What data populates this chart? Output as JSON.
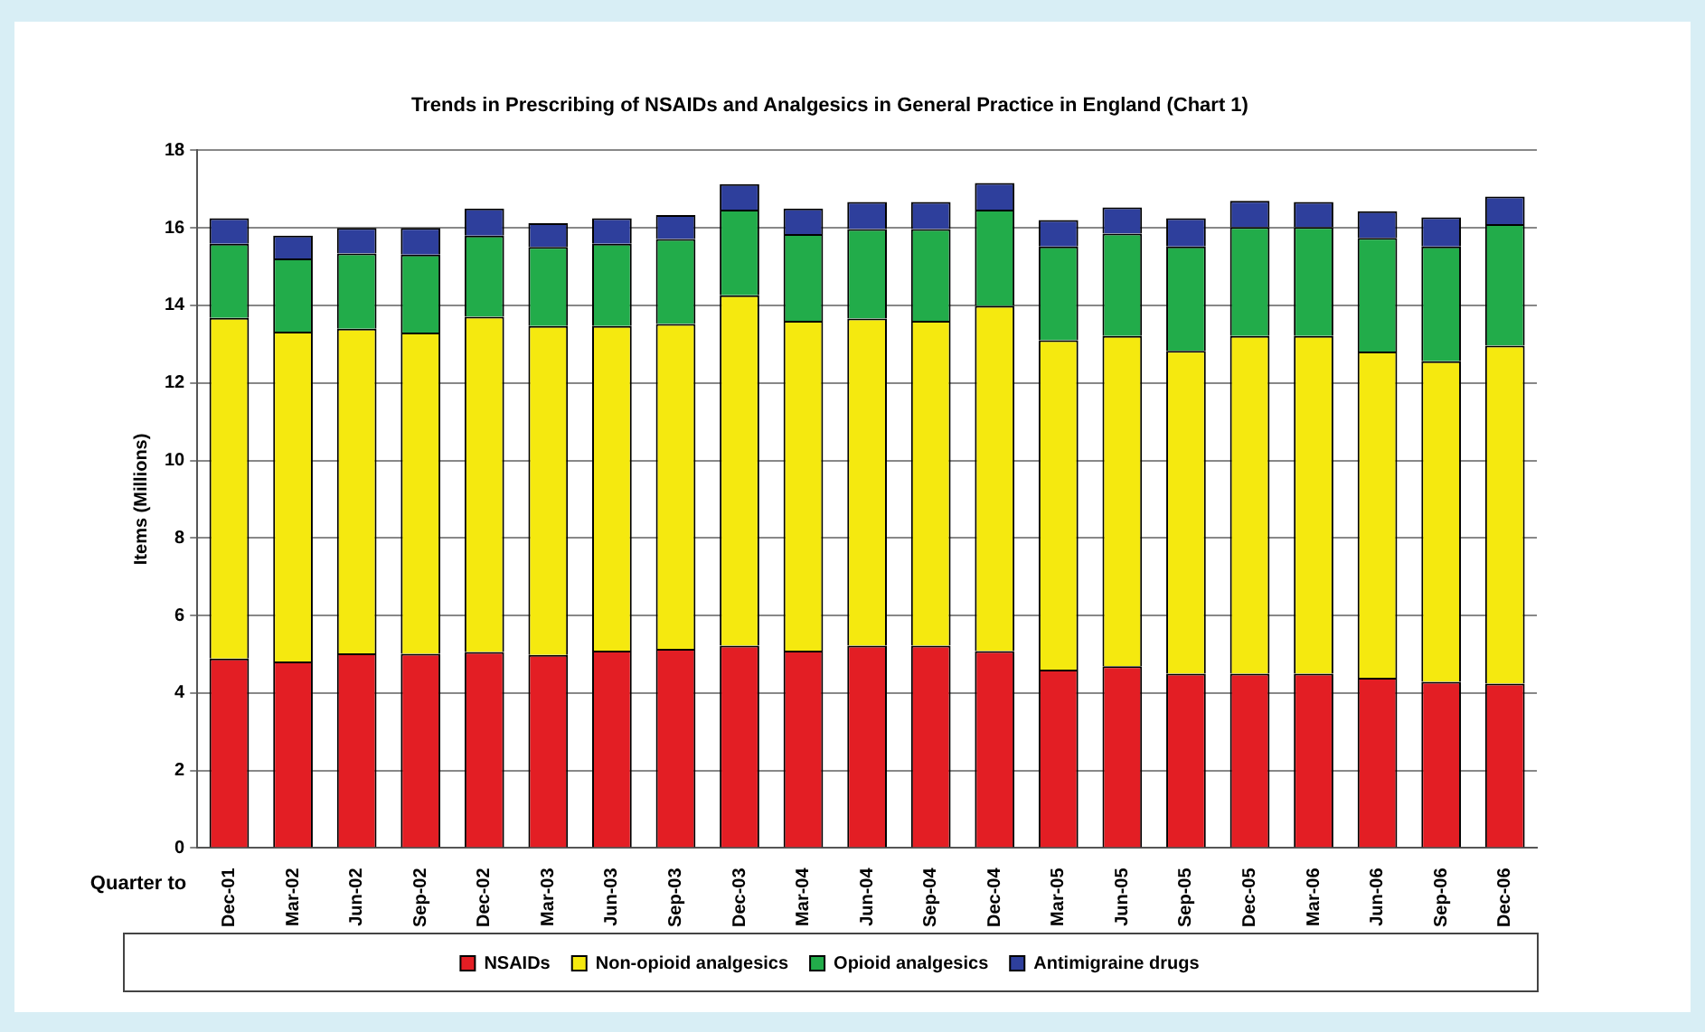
{
  "chart_data": {
    "type": "bar",
    "title": "Trends in Prescribing of NSAIDs and Analgesics in General Practice in England (Chart 1)",
    "xlabel": "Quarter to",
    "ylabel": "Items (Millions)",
    "categories": [
      "Dec-01",
      "Mar-02",
      "Jun-02",
      "Sep-02",
      "Dec-02",
      "Mar-03",
      "Jun-03",
      "Sep-03",
      "Dec-03",
      "Mar-04",
      "Jun-04",
      "Sep-04",
      "Dec-04",
      "Mar-05",
      "Jun-05",
      "Sep-05",
      "Dec-05",
      "Mar-06",
      "Jun-06",
      "Sep-06",
      "Dec-06"
    ],
    "stacked": true,
    "grid": "y",
    "legend": "bottom",
    "ylim": [
      0,
      18
    ],
    "yticks": [
      0,
      2,
      4,
      6,
      8,
      10,
      12,
      14,
      16,
      18
    ],
    "series": [
      {
        "name": "NSAIDs",
        "color": "#e31e24",
        "values": [
          4.89,
          4.81,
          5.02,
          5.01,
          5.06,
          4.98,
          5.09,
          5.14,
          5.22,
          5.09,
          5.22,
          5.22,
          5.08,
          4.6,
          4.69,
          4.5,
          4.5,
          4.5,
          4.39,
          4.29,
          4.24
        ]
      },
      {
        "name": "Non-opioid analgesics",
        "color": "#f5e90f",
        "values": [
          8.79,
          8.51,
          8.38,
          8.29,
          8.65,
          8.49,
          8.38,
          8.38,
          9.04,
          8.51,
          8.44,
          8.38,
          8.91,
          8.5,
          8.52,
          8.33,
          8.71,
          8.71,
          8.42,
          8.27,
          8.72
        ]
      },
      {
        "name": "Opioid analgesics",
        "color": "#22ac4a",
        "values": [
          1.91,
          1.89,
          1.94,
          2.01,
          2.09,
          2.04,
          2.12,
          2.19,
          2.21,
          2.24,
          2.31,
          2.37,
          2.48,
          2.42,
          2.64,
          2.69,
          2.81,
          2.81,
          2.93,
          2.96,
          3.14
        ]
      },
      {
        "name": "Antimigraine drugs",
        "color": "#2e3f9c",
        "values": [
          0.66,
          0.59,
          0.66,
          0.69,
          0.7,
          0.61,
          0.66,
          0.62,
          0.66,
          0.66,
          0.7,
          0.7,
          0.69,
          0.68,
          0.68,
          0.73,
          0.68,
          0.65,
          0.69,
          0.75,
          0.71
        ]
      }
    ]
  }
}
